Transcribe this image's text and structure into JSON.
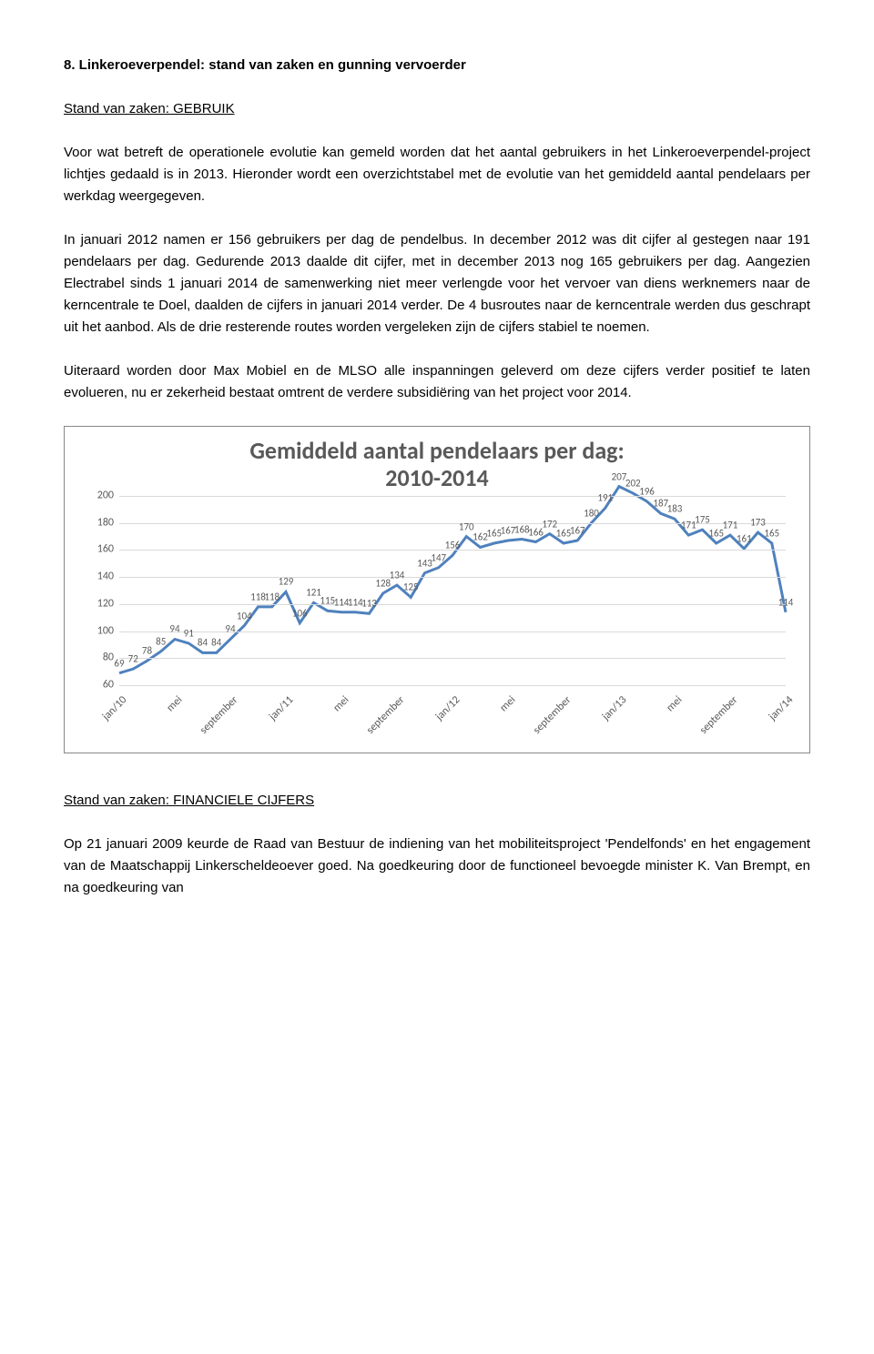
{
  "heading": "8.  Linkeroeverpendel: stand van zaken en gunning vervoerder",
  "subheading1": "Stand van zaken: GEBRUIK",
  "para1": "Voor wat betreft de operationele evolutie kan gemeld worden dat het aantal gebruikers in het Linkeroeverpendel-project lichtjes gedaald is in 2013. Hieronder wordt een overzichtstabel met de evolutie van het gemiddeld aantal pendelaars per werkdag weergegeven.",
  "para2": "In januari 2012 namen er 156 gebruikers per dag de pendelbus. In december 2012 was dit cijfer al gestegen naar 191 pendelaars per dag. Gedurende 2013 daalde dit cijfer, met in december 2013 nog 165 gebruikers per dag. Aangezien Electrabel sinds 1 januari 2014 de samenwerking niet meer verlengde voor het vervoer van diens werknemers naar de kerncentrale te Doel, daalden de cijfers in januari 2014 verder. De 4 busroutes naar de kerncentrale werden dus geschrapt uit het aanbod. Als de drie resterende routes worden vergeleken zijn de cijfers stabiel te noemen.",
  "para3": "Uiteraard worden door Max Mobiel en de MLSO alle inspanningen geleverd om deze cijfers verder positief te laten evolueren, nu er zekerheid bestaat omtrent de verdere subsidiëring van het project voor 2014.",
  "chart": {
    "type": "line",
    "title_line1": "Gemiddeld aantal pendelaars per dag:",
    "title_line2": "2010-2014",
    "title_fontsize": 26,
    "ylim_min": 60,
    "ylim_max": 200,
    "ytick_step": 20,
    "line_color": "#4f81bd",
    "line_width": 3,
    "grid_color": "#d9d9d9",
    "label_color": "#595959",
    "label_fontsize": 12,
    "datalabel_fontsize": 11,
    "x_labels": [
      "jan/10",
      "",
      "",
      "",
      "mei",
      "",
      "",
      "",
      "september",
      "",
      "",
      "",
      "jan/11",
      "",
      "",
      "",
      "mei",
      "",
      "",
      "",
      "september",
      "",
      "",
      "",
      "jan/12",
      "",
      "",
      "",
      "mei",
      "",
      "",
      "",
      "september",
      "",
      "",
      "",
      "jan/13",
      "",
      "",
      "",
      "mei",
      "",
      "",
      "",
      "september",
      "",
      "",
      "",
      "jan/14"
    ],
    "values": [
      69,
      72,
      78,
      85,
      94,
      91,
      84,
      84,
      94,
      104,
      118,
      118,
      129,
      106,
      121,
      115,
      114,
      114,
      113,
      128,
      134,
      125,
      143,
      147,
      156,
      170,
      162,
      165,
      167,
      168,
      166,
      172,
      165,
      167,
      180,
      191,
      207,
      202,
      196,
      187,
      183,
      171,
      175,
      165,
      171,
      161,
      173,
      165,
      114
    ]
  },
  "subheading2": "Stand van zaken: FINANCIELE CIJFERS",
  "para4": "Op 21 januari 2009 keurde de Raad van Bestuur de indiening van het mobiliteitsproject 'Pendelfonds' en het engagement van de Maatschappij Linkerscheldeoever goed. Na goedkeuring door de functioneel bevoegde minister K. Van Brempt, en na goedkeuring van"
}
